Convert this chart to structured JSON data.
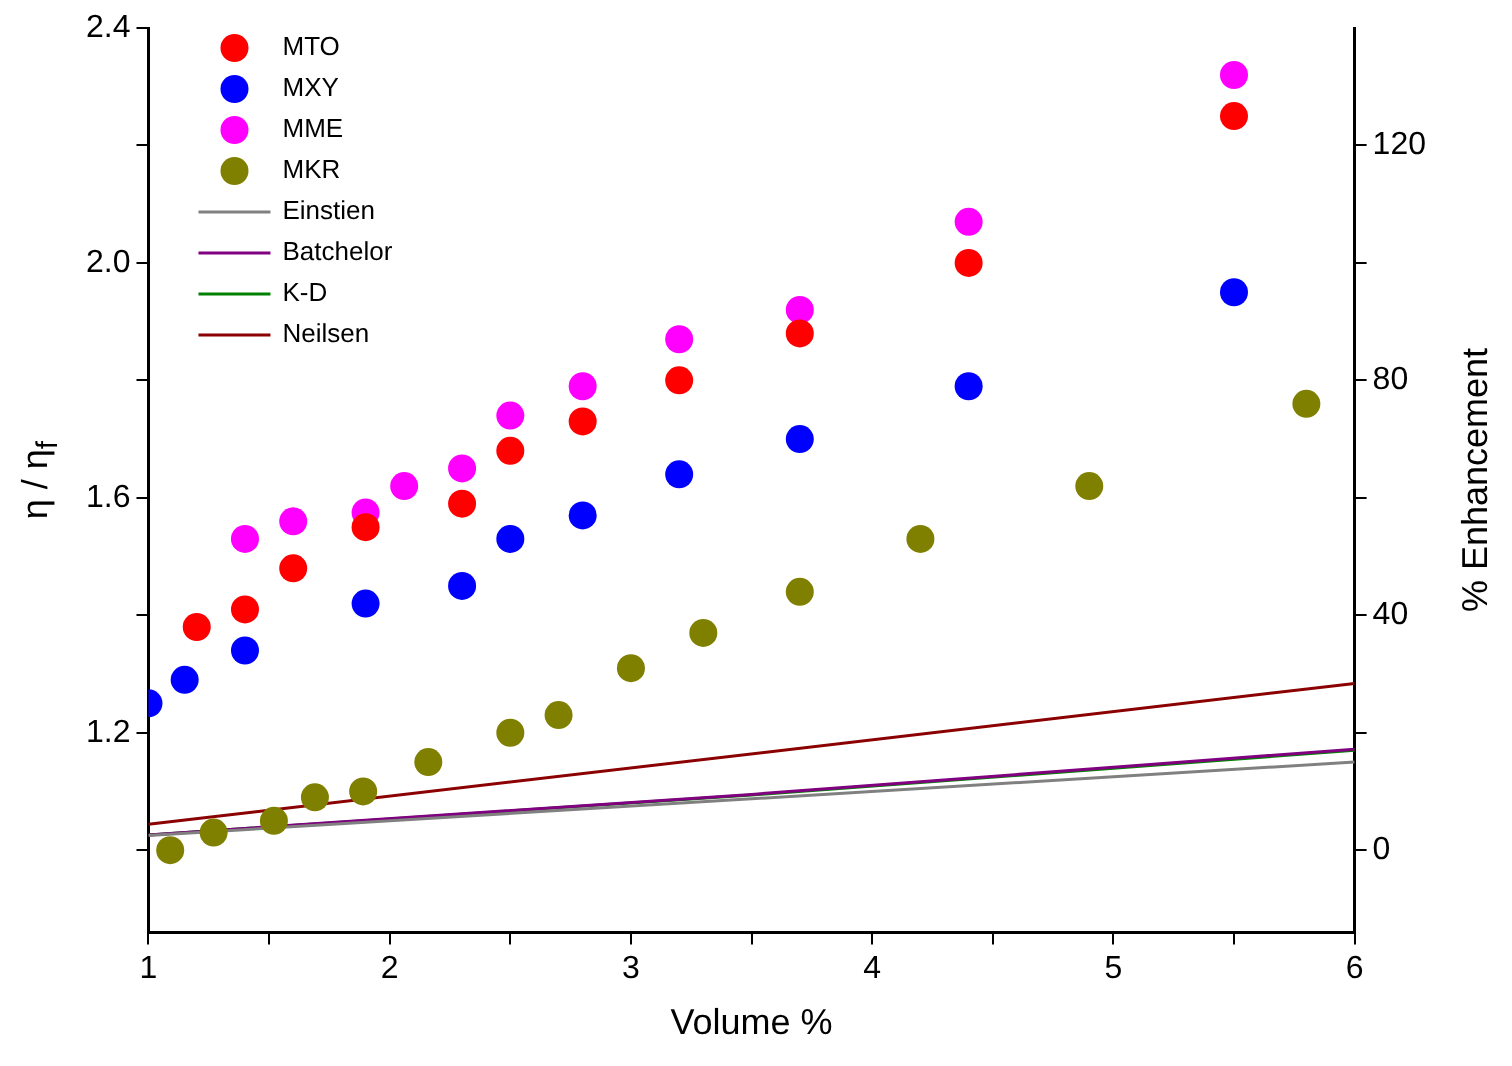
{
  "chart_data": {
    "type": "scatter",
    "xlabel": "Volume %",
    "ylabel": "η / η$_{f}$",
    "y2label": "% Enhancement",
    "xlim": [
      1,
      6
    ],
    "xticks": [
      1,
      {
        "value": 1.5,
        "label": null
      },
      2,
      {
        "value": 2.5,
        "label": null
      },
      3,
      {
        "value": 3.5,
        "label": null
      },
      4,
      {
        "value": 4.5,
        "label": null
      },
      5,
      {
        "value": 5.5,
        "label": null
      },
      6
    ],
    "ylim": [
      0.86,
      2.4
    ],
    "yticks": [
      {
        "value": 1.0,
        "label": null
      },
      1.2,
      {
        "value": 1.4,
        "label": null
      },
      1.6,
      {
        "value": 1.8,
        "label": null
      },
      {
        "value": 2,
        "label": "2.0"
      },
      {
        "value": 2.2,
        "label": null
      },
      2.4
    ],
    "y2lim": [
      -14,
      140
    ],
    "y2ticks": [
      0,
      {
        "value": 20,
        "label": null
      },
      40,
      {
        "value": 60,
        "label": null
      },
      80,
      {
        "value": 100,
        "label": null
      },
      120
    ],
    "grid": false,
    "legend": "top left",
    "marker": "circle",
    "series": [
      {
        "name": "MTO",
        "color": "#ff0000",
        "x": [
          1.2,
          1.4,
          1.6,
          1.9,
          2.3,
          2.5,
          2.8,
          3.2,
          3.7,
          4.4,
          5.5
        ],
        "values": [
          1.38,
          1.41,
          1.48,
          1.55,
          1.59,
          1.68,
          1.73,
          1.8,
          1.88,
          2.0,
          2.25
        ]
      },
      {
        "name": "MXY",
        "color": "#0000ff",
        "x": [
          1.0,
          1.15,
          1.4,
          1.9,
          2.3,
          2.5,
          2.8,
          3.2,
          3.7,
          4.4,
          5.5
        ],
        "values": [
          1.25,
          1.29,
          1.34,
          1.42,
          1.45,
          1.53,
          1.57,
          1.64,
          1.7,
          1.79,
          1.95
        ]
      },
      {
        "name": "MME",
        "color": "#ff00ff",
        "x": [
          1.4,
          1.6,
          1.9,
          2.06,
          2.3,
          2.5,
          2.8,
          3.2,
          3.7,
          4.4,
          5.5
        ],
        "values": [
          1.53,
          1.56,
          1.575,
          1.62,
          1.65,
          1.74,
          1.79,
          1.87,
          1.92,
          2.07,
          2.32
        ]
      },
      {
        "name": "MKR",
        "color": "#808000",
        "x": [
          1.09,
          1.27,
          1.52,
          1.69,
          1.89,
          2.16,
          2.5,
          2.7,
          3.0,
          3.3,
          3.7,
          4.2,
          4.9,
          5.8
        ],
        "values": [
          1.0,
          1.03,
          1.05,
          1.09,
          1.1,
          1.15,
          1.2,
          1.23,
          1.31,
          1.37,
          1.44,
          1.53,
          1.62,
          1.76
        ]
      },
      {
        "name": "Einstien",
        "type": "line",
        "marker": "none",
        "color": "#808080",
        "x": [
          1,
          6
        ],
        "values": [
          1.025,
          1.15
        ]
      },
      {
        "name": "Batchelor",
        "type": "line",
        "marker": "none",
        "color": "#800080",
        "x": [
          1,
          3.5,
          6
        ],
        "values": [
          1.026,
          1.095,
          1.172
        ]
      },
      {
        "name": "K-D",
        "type": "line",
        "marker": "none",
        "color": "#008000",
        "x": [
          1,
          3.5,
          6
        ],
        "values": [
          1.026,
          1.094,
          1.17
        ]
      },
      {
        "name": "Neilsen",
        "type": "line",
        "marker": "none",
        "color": "#8b0000",
        "x": [
          1,
          6
        ],
        "values": [
          1.044,
          1.284
        ]
      }
    ]
  }
}
